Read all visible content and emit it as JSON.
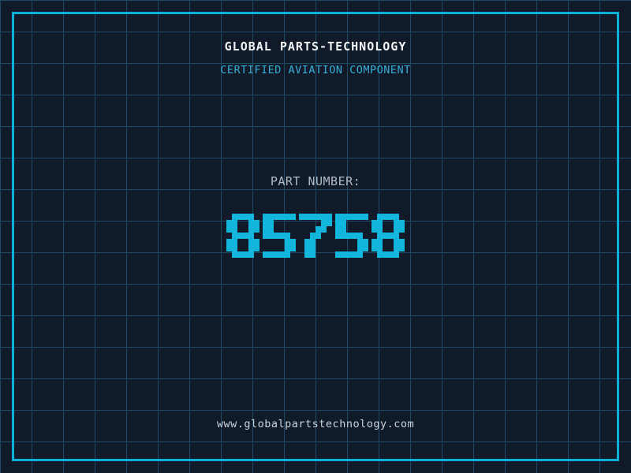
{
  "header": {
    "title": "GLOBAL PARTS-TECHNOLOGY",
    "subtitle": "CERTIFIED AVIATION COMPONENT"
  },
  "part_number": {
    "label": "PART NUMBER:",
    "value": "85758"
  },
  "footer": {
    "website": "www.globalpartstechnology.com"
  },
  "colors": {
    "background": "#101a29",
    "grid_line": "#1b4a61",
    "frame": "#0cb0d8",
    "title": "#f2f4f6",
    "subtitle": "#35aed6",
    "label": "#b3bcc6",
    "digits": "#12b6dc",
    "website": "#ccd4dc"
  }
}
